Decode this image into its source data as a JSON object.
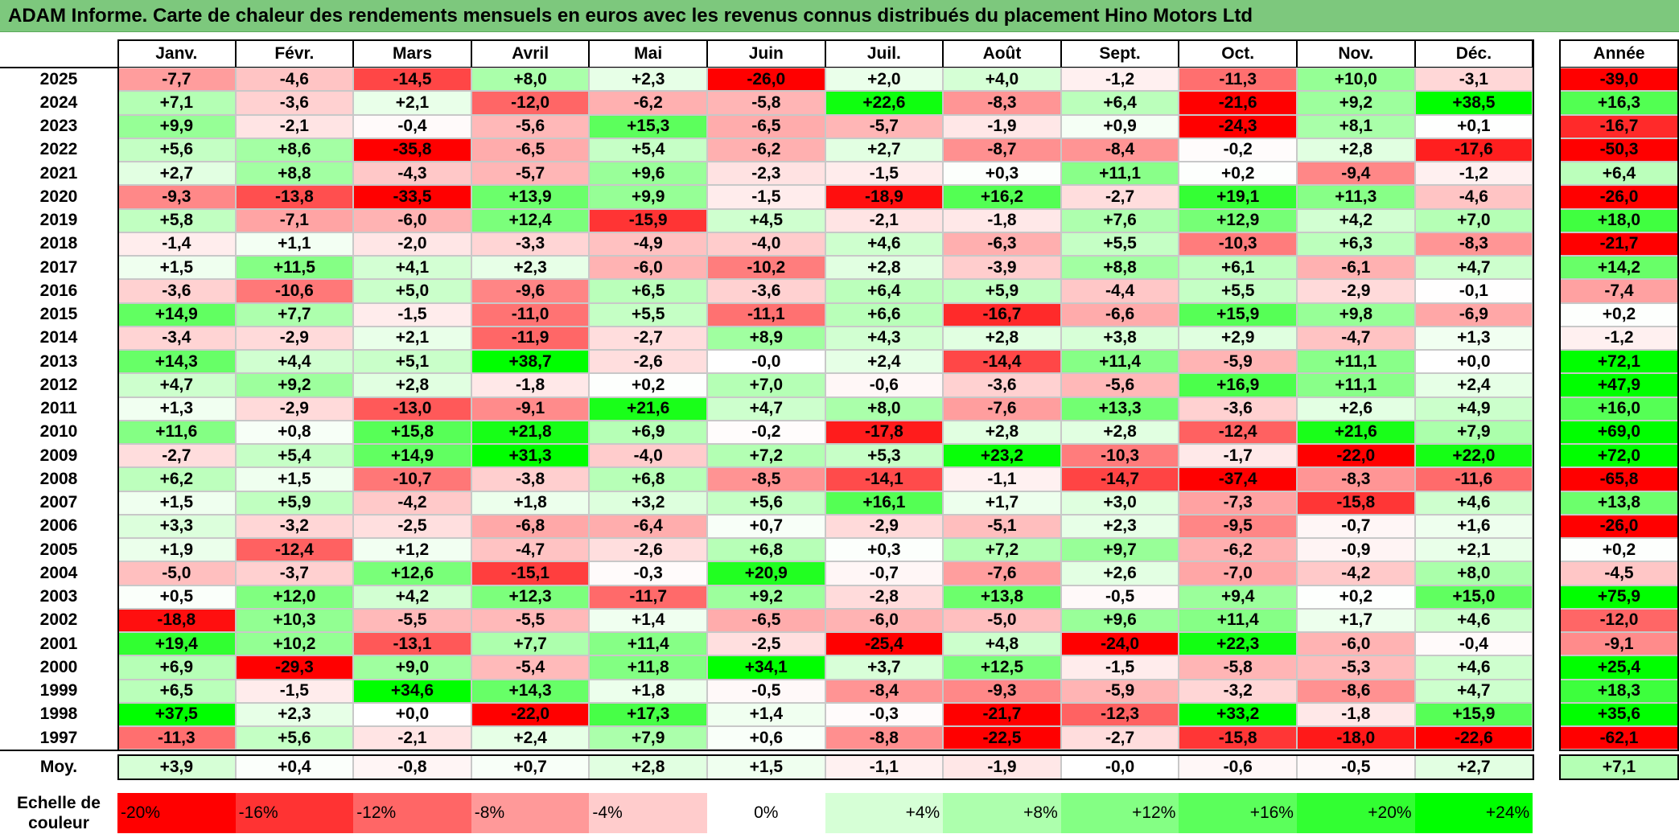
{
  "title": "ADAM Informe. Carte de chaleur des rendements mensuels en euros avec les revenus connus distribués du placement Hino Motors Ltd",
  "chart_data": {
    "type": "heatmap",
    "title": "ADAM Informe. Carte de chaleur des rendements mensuels en euros avec les revenus connus distribués du placement Hino Motors Ltd",
    "columns": [
      "Janv.",
      "Févr.",
      "Mars",
      "Avril",
      "Mai",
      "Juin",
      "Juil.",
      "Août",
      "Sept.",
      "Oct.",
      "Nov.",
      "Déc."
    ],
    "year_label": "Année",
    "rows": [
      {
        "year": "2025",
        "values": [
          "-7,7",
          "-4,6",
          "-14,5",
          "+8,0",
          "+2,3",
          "-26,0",
          "+2,0",
          "+4,0",
          "-1,2",
          "-11,3",
          "+10,0",
          "-3,1"
        ],
        "annual": "-39,0"
      },
      {
        "year": "2024",
        "values": [
          "+7,1",
          "-3,6",
          "+2,1",
          "-12,0",
          "-6,2",
          "-5,8",
          "+22,6",
          "-8,3",
          "+6,4",
          "-21,6",
          "+9,2",
          "+38,5"
        ],
        "annual": "+16,3"
      },
      {
        "year": "2023",
        "values": [
          "+9,9",
          "-2,1",
          "-0,4",
          "-5,6",
          "+15,3",
          "-6,5",
          "-5,7",
          "-1,9",
          "+0,9",
          "-24,3",
          "+8,1",
          "+0,1"
        ],
        "annual": "-16,7"
      },
      {
        "year": "2022",
        "values": [
          "+5,6",
          "+8,6",
          "-35,8",
          "-6,5",
          "+5,4",
          "-6,2",
          "+2,7",
          "-8,7",
          "-8,4",
          "-0,2",
          "+2,8",
          "-17,6"
        ],
        "annual": "-50,3"
      },
      {
        "year": "2021",
        "values": [
          "+2,7",
          "+8,8",
          "-4,3",
          "-5,7",
          "+9,6",
          "-2,3",
          "-1,5",
          "+0,3",
          "+11,1",
          "+0,2",
          "-9,4",
          "-1,2"
        ],
        "annual": "+6,4"
      },
      {
        "year": "2020",
        "values": [
          "-9,3",
          "-13,8",
          "-33,5",
          "+13,9",
          "+9,9",
          "-1,5",
          "-18,9",
          "+16,2",
          "-2,7",
          "+19,1",
          "+11,3",
          "-4,6"
        ],
        "annual": "-26,0"
      },
      {
        "year": "2019",
        "values": [
          "+5,8",
          "-7,1",
          "-6,0",
          "+12,4",
          "-15,9",
          "+4,5",
          "-2,1",
          "-1,8",
          "+7,6",
          "+12,9",
          "+4,2",
          "+7,0"
        ],
        "annual": "+18,0"
      },
      {
        "year": "2018",
        "values": [
          "-1,4",
          "+1,1",
          "-2,0",
          "-3,3",
          "-4,9",
          "-4,0",
          "+4,6",
          "-6,3",
          "+5,5",
          "-10,3",
          "+6,3",
          "-8,3"
        ],
        "annual": "-21,7"
      },
      {
        "year": "2017",
        "values": [
          "+1,5",
          "+11,5",
          "+4,1",
          "+2,3",
          "-6,0",
          "-10,2",
          "+2,8",
          "-3,9",
          "+8,8",
          "+6,1",
          "-6,1",
          "+4,7"
        ],
        "annual": "+14,2"
      },
      {
        "year": "2016",
        "values": [
          "-3,6",
          "-10,6",
          "+5,0",
          "-9,6",
          "+6,5",
          "-3,6",
          "+6,4",
          "+5,9",
          "-4,4",
          "+5,5",
          "-2,9",
          "-0,1"
        ],
        "annual": "-7,4"
      },
      {
        "year": "2015",
        "values": [
          "+14,9",
          "+7,7",
          "-1,5",
          "-11,0",
          "+5,5",
          "-11,1",
          "+6,6",
          "-16,7",
          "-6,6",
          "+15,9",
          "+9,8",
          "-6,9"
        ],
        "annual": "+0,2"
      },
      {
        "year": "2014",
        "values": [
          "-3,4",
          "-2,9",
          "+2,1",
          "-11,9",
          "-2,7",
          "+8,9",
          "+4,3",
          "+2,8",
          "+3,8",
          "+2,9",
          "-4,7",
          "+1,3"
        ],
        "annual": "-1,2"
      },
      {
        "year": "2013",
        "values": [
          "+14,3",
          "+4,4",
          "+5,1",
          "+38,7",
          "-2,6",
          "-0,0",
          "+2,4",
          "-14,4",
          "+11,4",
          "-5,9",
          "+11,1",
          "+0,0"
        ],
        "annual": "+72,1"
      },
      {
        "year": "2012",
        "values": [
          "+4,7",
          "+9,2",
          "+2,8",
          "-1,8",
          "+0,2",
          "+7,0",
          "-0,6",
          "-3,6",
          "-5,6",
          "+16,9",
          "+11,1",
          "+2,4"
        ],
        "annual": "+47,9"
      },
      {
        "year": "2011",
        "values": [
          "+1,3",
          "-2,9",
          "-13,0",
          "-9,1",
          "+21,6",
          "+4,7",
          "+8,0",
          "-7,6",
          "+13,3",
          "-3,6",
          "+2,6",
          "+4,9"
        ],
        "annual": "+16,0"
      },
      {
        "year": "2010",
        "values": [
          "+11,6",
          "+0,8",
          "+15,8",
          "+21,8",
          "+6,9",
          "-0,2",
          "-17,8",
          "+2,8",
          "+2,8",
          "-12,4",
          "+21,6",
          "+7,9"
        ],
        "annual": "+69,0"
      },
      {
        "year": "2009",
        "values": [
          "-2,7",
          "+5,4",
          "+14,9",
          "+31,3",
          "-4,0",
          "+7,2",
          "+5,3",
          "+23,2",
          "-10,3",
          "-1,7",
          "-22,0",
          "+22,0"
        ],
        "annual": "+72,0"
      },
      {
        "year": "2008",
        "values": [
          "+6,2",
          "+1,5",
          "-10,7",
          "-3,8",
          "+6,8",
          "-8,5",
          "-14,1",
          "-1,1",
          "-14,7",
          "-37,4",
          "-8,3",
          "-11,6"
        ],
        "annual": "-65,8"
      },
      {
        "year": "2007",
        "values": [
          "+1,5",
          "+5,9",
          "-4,2",
          "+1,8",
          "+3,2",
          "+5,6",
          "+16,1",
          "+1,7",
          "+3,0",
          "-7,3",
          "-15,8",
          "+4,6"
        ],
        "annual": "+13,8"
      },
      {
        "year": "2006",
        "values": [
          "+3,3",
          "-3,2",
          "-2,5",
          "-6,8",
          "-6,4",
          "+0,7",
          "-2,9",
          "-5,1",
          "+2,3",
          "-9,5",
          "-0,7",
          "+1,6"
        ],
        "annual": "-26,0"
      },
      {
        "year": "2005",
        "values": [
          "+1,9",
          "-12,4",
          "+1,2",
          "-4,7",
          "-2,6",
          "+6,8",
          "+0,3",
          "+7,2",
          "+9,7",
          "-6,2",
          "-0,9",
          "+2,1"
        ],
        "annual": "+0,2"
      },
      {
        "year": "2004",
        "values": [
          "-5,0",
          "-3,7",
          "+12,6",
          "-15,1",
          "-0,3",
          "+20,9",
          "-0,7",
          "-7,6",
          "+2,6",
          "-7,0",
          "-4,2",
          "+8,0"
        ],
        "annual": "-4,5"
      },
      {
        "year": "2003",
        "values": [
          "+0,5",
          "+12,0",
          "+4,2",
          "+12,3",
          "-11,7",
          "+9,2",
          "-2,8",
          "+13,8",
          "-0,5",
          "+9,4",
          "+0,2",
          "+15,0"
        ],
        "annual": "+75,9"
      },
      {
        "year": "2002",
        "values": [
          "-18,8",
          "+10,3",
          "-5,5",
          "-5,5",
          "+1,4",
          "-6,5",
          "-6,0",
          "-5,0",
          "+9,6",
          "+11,4",
          "+1,7",
          "+4,6"
        ],
        "annual": "-12,0"
      },
      {
        "year": "2001",
        "values": [
          "+19,4",
          "+10,2",
          "-13,1",
          "+7,7",
          "+11,4",
          "-2,5",
          "-25,4",
          "+4,8",
          "-24,0",
          "+22,3",
          "-6,0",
          "-0,4"
        ],
        "annual": "-9,1"
      },
      {
        "year": "2000",
        "values": [
          "+6,9",
          "-29,3",
          "+9,0",
          "-5,4",
          "+11,8",
          "+34,1",
          "+3,7",
          "+12,5",
          "-1,5",
          "-5,8",
          "-5,3",
          "+4,6"
        ],
        "annual": "+25,4"
      },
      {
        "year": "1999",
        "values": [
          "+6,5",
          "-1,5",
          "+34,6",
          "+14,3",
          "+1,8",
          "-0,5",
          "-8,4",
          "-9,3",
          "-5,9",
          "-3,2",
          "-8,6",
          "+4,7"
        ],
        "annual": "+18,3"
      },
      {
        "year": "1998",
        "values": [
          "+37,5",
          "+2,3",
          "+0,0",
          "-22,0",
          "+17,3",
          "+1,4",
          "-0,3",
          "-21,7",
          "-12,3",
          "+33,2",
          "-1,8",
          "+15,9"
        ],
        "annual": "+35,6"
      },
      {
        "year": "1997",
        "values": [
          "-11,3",
          "+5,6",
          "-2,1",
          "+2,4",
          "+7,9",
          "+0,6",
          "-8,8",
          "-22,5",
          "-2,7",
          "-15,8",
          "-18,0",
          "-22,6"
        ],
        "annual": "-62,1"
      }
    ],
    "average": {
      "label": "Moy.",
      "values": [
        "+3,9",
        "+0,4",
        "-0,8",
        "+0,7",
        "+2,8",
        "+1,5",
        "-1,1",
        "-1,9",
        "-0,0",
        "-0,6",
        "-0,5",
        "+2,7"
      ],
      "annual": "+7,1"
    },
    "color_scale": {
      "label": "Echelle de couleur",
      "steps": [
        {
          "label": "-20%",
          "value": -20,
          "color": "#ff0000"
        },
        {
          "label": "-16%",
          "value": -16,
          "color": "#ff3333"
        },
        {
          "label": "-12%",
          "value": -12,
          "color": "#ff6666"
        },
        {
          "label": "-8%",
          "value": -8,
          "color": "#ff9999"
        },
        {
          "label": "-4%",
          "value": -4,
          "color": "#ffcccc"
        },
        {
          "label": "0%",
          "value": 0,
          "color": "#ffffff"
        },
        {
          "label": "+4%",
          "value": 4,
          "color": "#d6ffd6"
        },
        {
          "label": "+8%",
          "value": 8,
          "color": "#adffad"
        },
        {
          "label": "+12%",
          "value": 12,
          "color": "#84ff84"
        },
        {
          "label": "+16%",
          "value": 16,
          "color": "#5bff5b"
        },
        {
          "label": "+20%",
          "value": 20,
          "color": "#32ff32"
        },
        {
          "label": "+24%",
          "value": 24,
          "color": "#00ff00"
        }
      ]
    }
  }
}
